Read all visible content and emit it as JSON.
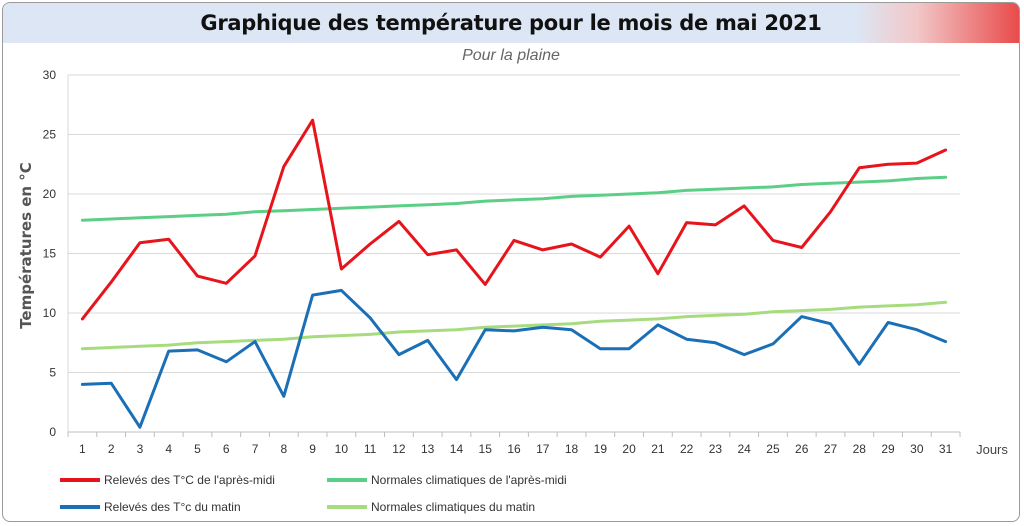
{
  "title": "Graphique des température pour le mois de mai 2021",
  "subtitle": "Pour la plaine",
  "chart_data": {
    "type": "line",
    "title": "Graphique des température pour le mois de mai 2021",
    "subtitle": "Pour la plaine",
    "xlabel": "Jours",
    "ylabel": "Températures en °C",
    "ylim": [
      0,
      30
    ],
    "yticks": [
      0,
      5,
      10,
      15,
      20,
      25,
      30
    ],
    "x": [
      1,
      2,
      3,
      4,
      5,
      6,
      7,
      8,
      9,
      10,
      11,
      12,
      13,
      14,
      15,
      16,
      17,
      18,
      19,
      20,
      21,
      22,
      23,
      24,
      25,
      26,
      27,
      28,
      29,
      30,
      31
    ],
    "grid": "horizontal",
    "legend_position": "bottom",
    "series": [
      {
        "name": "Relevés des T°C de l'après-midi",
        "color": "#e8141b",
        "values": [
          9.5,
          12.6,
          15.9,
          16.2,
          13.1,
          12.5,
          14.8,
          22.3,
          26.2,
          13.7,
          15.8,
          17.7,
          14.9,
          15.3,
          12.4,
          16.1,
          15.3,
          15.8,
          14.7,
          17.3,
          13.3,
          17.6,
          17.4,
          19.0,
          16.1,
          15.5,
          18.5,
          22.2,
          22.5,
          22.6,
          23.7
        ]
      },
      {
        "name": "Relevés des T°c du matin",
        "color": "#1a6fb7",
        "values": [
          4.0,
          4.1,
          0.4,
          6.8,
          6.9,
          5.9,
          7.6,
          3.0,
          11.5,
          11.9,
          9.6,
          6.5,
          7.7,
          4.4,
          8.6,
          8.5,
          8.8,
          8.6,
          7.0,
          7.0,
          9.0,
          7.8,
          7.5,
          6.5,
          7.4,
          9.7,
          9.1,
          5.7,
          9.2,
          8.6,
          7.6
        ]
      },
      {
        "name": "Normales climatiques de l'après-midi",
        "color": "#5ccf86",
        "values": [
          17.8,
          17.9,
          18.0,
          18.1,
          18.2,
          18.3,
          18.5,
          18.6,
          18.7,
          18.8,
          18.9,
          19.0,
          19.1,
          19.2,
          19.4,
          19.5,
          19.6,
          19.8,
          19.9,
          20.0,
          20.1,
          20.3,
          20.4,
          20.5,
          20.6,
          20.8,
          20.9,
          21.0,
          21.1,
          21.3,
          21.4
        ]
      },
      {
        "name": "Normales climatiques du matin",
        "color": "#a6dc7e",
        "values": [
          7.0,
          7.1,
          7.2,
          7.3,
          7.5,
          7.6,
          7.7,
          7.8,
          8.0,
          8.1,
          8.2,
          8.4,
          8.5,
          8.6,
          8.8,
          8.9,
          9.0,
          9.1,
          9.3,
          9.4,
          9.5,
          9.7,
          9.8,
          9.9,
          10.1,
          10.2,
          10.3,
          10.5,
          10.6,
          10.7,
          10.9
        ]
      }
    ]
  }
}
